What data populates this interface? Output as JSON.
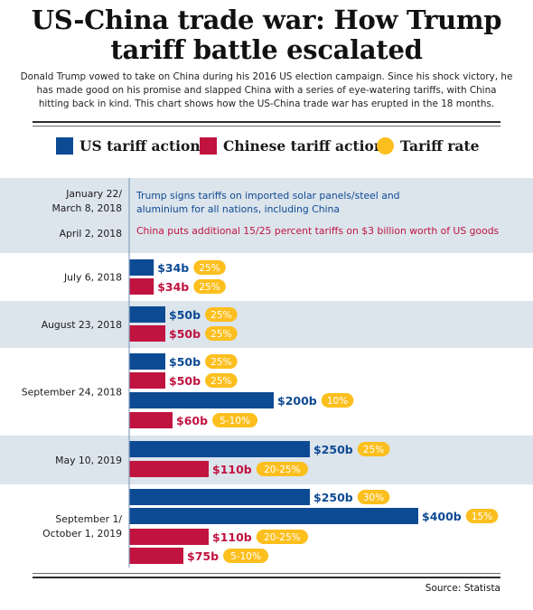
{
  "header": {
    "title_line1": "US-China trade war: How Trump",
    "title_line2": "tariff battle escalated",
    "subtitle": "Donald Trump vowed to take on China during his 2016 US election campaign. Since his shock victory, he has made good on his promise and slapped China with a series of eye-watering tariffs, with China hitting back in kind. This chart shows how the US-China trade war has erupted in the 18 months."
  },
  "legend": {
    "us_label": "US tariff action",
    "china_label": "Chinese tariff action",
    "rate_label": "Tariff rate"
  },
  "colors": {
    "us": "#0d4a94",
    "china": "#c1133f",
    "rate": "#fcbf1e",
    "band": "#dce4ec"
  },
  "source": "Source: Statista",
  "chart_data": {
    "type": "bar",
    "orientation": "horizontal",
    "unit": "US$ billion of goods",
    "groups": [
      {
        "date_lines": [
          "January 22/",
          "March 8, 2018"
        ],
        "shaded": true,
        "bars": [],
        "notes": [
          {
            "side": "us",
            "lines": [
              "Trump signs tariffs on imported solar panels/steel and",
              "aluminium for all nations, including China"
            ]
          }
        ]
      },
      {
        "date_lines": [
          "April 2, 2018"
        ],
        "shaded": true,
        "bars": [],
        "notes": [
          {
            "side": "china",
            "lines": [
              "China puts additional 15/25 percent tariffs on $3 billion worth of US goods"
            ]
          }
        ]
      },
      {
        "date_lines": [
          "July 6, 2018"
        ],
        "shaded": false,
        "bars": [
          {
            "side": "us",
            "value": 34,
            "label": "$34b",
            "rate": "25%"
          },
          {
            "side": "china",
            "value": 34,
            "label": "$34b",
            "rate": "25%"
          }
        ]
      },
      {
        "date_lines": [
          "August 23, 2018"
        ],
        "shaded": true,
        "bars": [
          {
            "side": "us",
            "value": 50,
            "label": "$50b",
            "rate": "25%"
          },
          {
            "side": "china",
            "value": 50,
            "label": "$50b",
            "rate": "25%"
          }
        ]
      },
      {
        "date_lines": [
          "September 24, 2018"
        ],
        "shaded": false,
        "bars": [
          {
            "side": "us",
            "value": 50,
            "label": "$50b",
            "rate": "25%"
          },
          {
            "side": "china",
            "value": 50,
            "label": "$50b",
            "rate": "25%"
          },
          {
            "side": "us",
            "value": 200,
            "label": "$200b",
            "rate": "10%"
          },
          {
            "side": "china",
            "value": 60,
            "label": "$60b",
            "rate": "5-10%"
          }
        ]
      },
      {
        "date_lines": [
          "May 10, 2019"
        ],
        "shaded": true,
        "bars": [
          {
            "side": "us",
            "value": 250,
            "label": "$250b",
            "rate": "25%"
          },
          {
            "side": "china",
            "value": 110,
            "label": "$110b",
            "rate": "20-25%"
          }
        ]
      },
      {
        "date_lines": [
          "September 1/",
          "October 1, 2019"
        ],
        "shaded": false,
        "bars": [
          {
            "side": "us",
            "value": 250,
            "label": "$250b",
            "rate": "30%"
          },
          {
            "side": "us",
            "value": 400,
            "label": "$400b",
            "rate": "15%"
          },
          {
            "side": "china",
            "value": 110,
            "label": "$110b",
            "rate": "20-25%"
          },
          {
            "side": "china",
            "value": 75,
            "label": "$75b",
            "rate": "5-10%"
          }
        ]
      }
    ]
  }
}
